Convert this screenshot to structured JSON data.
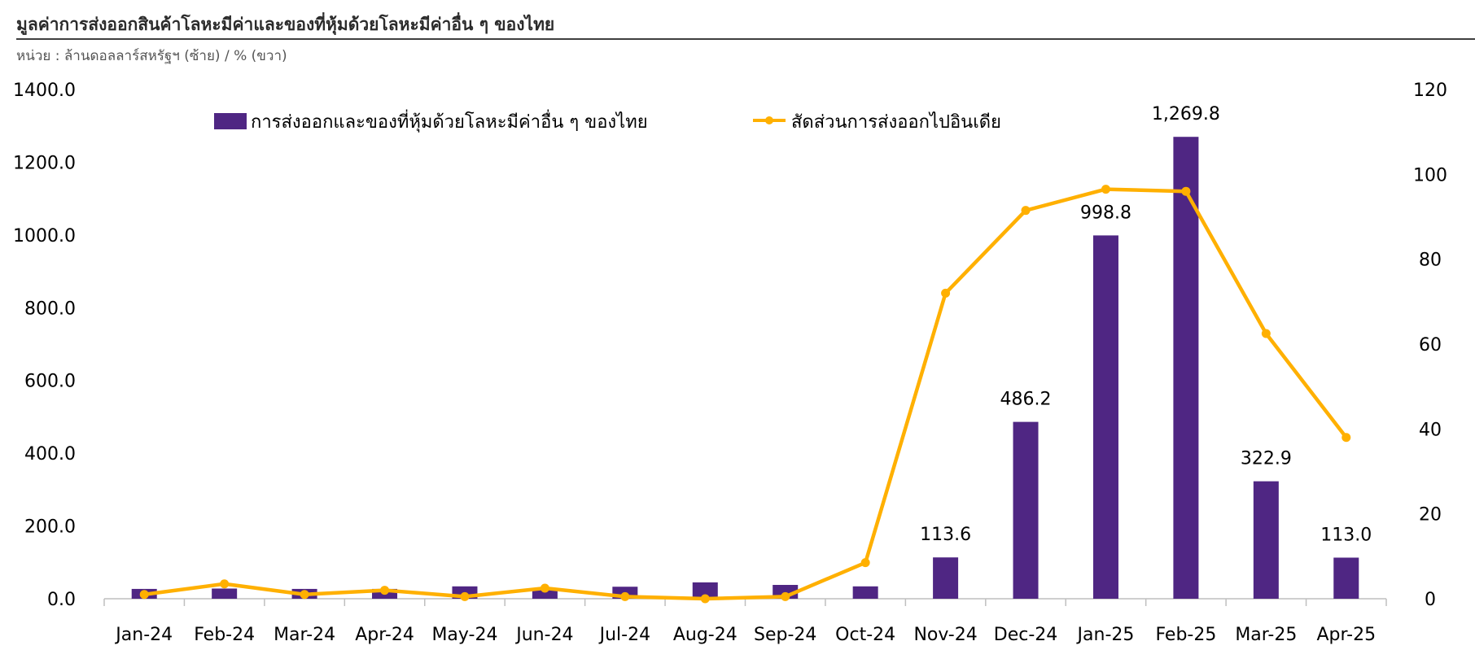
{
  "header": {
    "title": "มูลค่าการส่งออกสินค้าโลหะมีค่าและของที่หุ้มด้วยโลหะมีค่าอื่น ๆ ของไทย",
    "unit": "หน่วย : ล้านดอลลาร์สหรัฐฯ (ซ้าย) / % (ขวา)"
  },
  "colors": {
    "bar": "#4F2683",
    "line": "#FFB000",
    "axis": "#BFBFBF"
  },
  "chart_data": {
    "type": "bar",
    "categories": [
      "Jan-24",
      "Feb-24",
      "Mar-24",
      "Apr-24",
      "May-24",
      "Jun-24",
      "Jul-24",
      "Aug-24",
      "Sep-24",
      "Oct-24",
      "Nov-24",
      "Dec-24",
      "Jan-25",
      "Feb-25",
      "Mar-25",
      "Apr-25"
    ],
    "series": [
      {
        "name": "การส่งออกและของที่หุ้มด้วยโลหะมีค่าอื่น ๆ ของไทย",
        "type": "bar",
        "axis": "left",
        "values": [
          27,
          28,
          27,
          27,
          34,
          28,
          33,
          45,
          38,
          34,
          113.6,
          486.2,
          998.8,
          1269.8,
          322.9,
          113.0
        ],
        "labels": [
          "",
          "",
          "",
          "",
          "",
          "",
          "",
          "",
          "",
          "",
          "113.6",
          "486.2",
          "998.8",
          "1,269.8",
          "322.9",
          "113.0"
        ]
      },
      {
        "name": "สัดส่วนการส่งออกไปอินเดีย",
        "type": "line",
        "axis": "right",
        "values": [
          1,
          3.5,
          1,
          2,
          0.5,
          2.5,
          0.5,
          0,
          0.5,
          8.5,
          72,
          91.5,
          96.5,
          96,
          62.5,
          38
        ]
      }
    ],
    "y_left": {
      "min": 0,
      "max": 1400,
      "ticks": [
        "0.0",
        "200.0",
        "400.0",
        "600.0",
        "800.0",
        "1000.0",
        "1200.0",
        "1400.0"
      ]
    },
    "y_right": {
      "min": 0,
      "max": 120,
      "ticks": [
        "0",
        "20",
        "40",
        "60",
        "80",
        "100",
        "120"
      ]
    },
    "legend_position": "top",
    "grid": false
  }
}
